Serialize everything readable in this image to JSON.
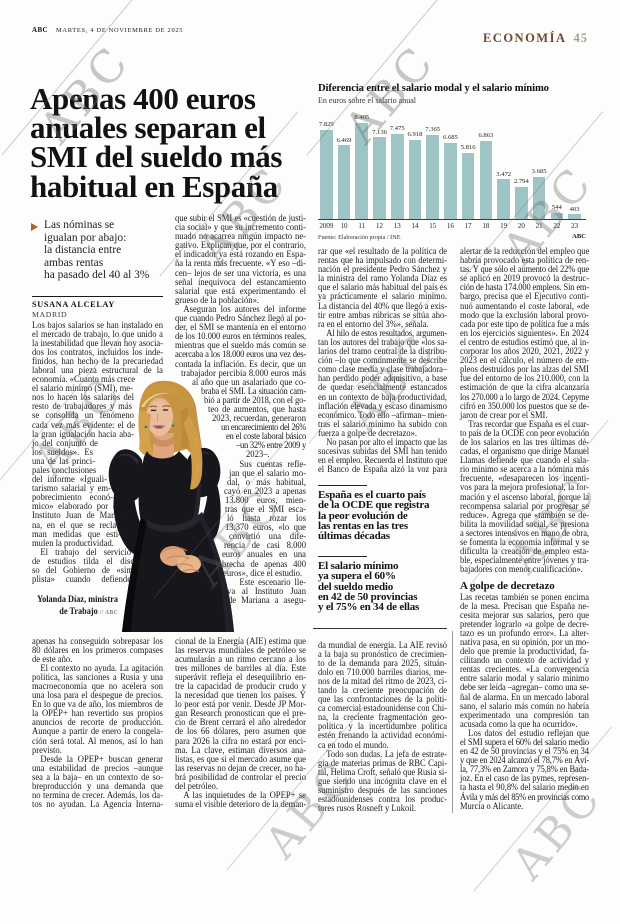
{
  "masthead": {
    "brand": "ABC",
    "date": "MARTES, 4 DE NOVIEMBRE DE 2025",
    "section": "ECONOMÍA",
    "page_number": "45",
    "section_color": "#6d4936",
    "page_number_color": "#9aa58f"
  },
  "headline": {
    "lines": [
      "Apenas 400 euros",
      "anuales separan el",
      "SMI del sueldo más",
      "habitual en España"
    ]
  },
  "standfirst": {
    "lines": [
      "Las nóminas se",
      "igualan por abajo:",
      "la distancia entre",
      "ambas rentas",
      "ha pasado del 40 al 3%"
    ],
    "arrow_color": "#a5672e"
  },
  "byline": {
    "author": "SUSANA ALCELAY",
    "location": "MADRID"
  },
  "chart_data": {
    "type": "bar",
    "title": "Diferencia entre el salario modal y el salario mínimo",
    "subtitle": "En euros sobre el salario anual",
    "categories": [
      "2009",
      "10",
      "11",
      "12",
      "13",
      "14",
      "15",
      "16",
      "17",
      "18",
      "19",
      "20",
      "21",
      "22",
      "23"
    ],
    "values": [
      7829,
      6469,
      8405,
      7136,
      7475,
      6918,
      7365,
      6685,
      5816,
      6863,
      3472,
      2794,
      3685,
      544,
      403
    ],
    "ylim": [
      0,
      8405
    ],
    "grid": false,
    "legend": false,
    "bar_color": "#9fc4c6",
    "xlabel": "",
    "ylabel": "",
    "source": "Fuente: Elaboración propia / INE",
    "credit": "ABC"
  },
  "photo_caption": {
    "name": "Yolanda Díaz, ministra de Trabajo",
    "line1": "Yolanda Díaz, ministra",
    "line2": "de Trabajo",
    "credit": "// ABC"
  },
  "article": {
    "subhead2": "A golpe de decretazo",
    "pull_quotes": [
      {
        "lines": [
          "España es el cuarto país",
          "de la OCDE que registra",
          "la peor evolución de",
          "las rentas en las tres",
          "últimas décadas"
        ]
      },
      {
        "lines": [
          "El salario mínimo",
          "ya supera el 60%",
          "del sueldo medio",
          "en 42 de 50 provincias",
          "y el 75% en 34 de ellas"
        ]
      }
    ],
    "columns": {
      "col1": {
        "inset_side": "right",
        "insets": [
          0,
          0,
          0,
          0,
          0,
          0,
          29,
          33,
          29,
          31,
          29,
          28,
          29,
          65,
          70,
          68,
          77,
          56,
          52,
          50,
          44,
          40,
          44,
          42,
          37,
          32,
          19,
          27,
          32
        ],
        "lines": [
          "Los bajos salarios se han instalado en",
          "el mercado de trabajo, lo que unido a",
          "la inestabilidad que llevan hoy asocia-",
          "dos los contratos, incluidos los inde-",
          "finidos, han hecho de la precariedad",
          "laboral una pieza estructural de la",
          "economía. «Cuanto más crece",
          "el salario mínimo (SMI), me-",
          "nos lo hacen los salarios del",
          "resto de trabajadores y más",
          "se consolida un fenómeno",
          "cada vez más evidente: el de",
          "la gran igualación hacia aba-",
          "jo del conjunto de",
          "los sueldos». Es",
          "una de las princi-",
          "pales conclusiones",
          "del informe «Iguali-",
          "tarismo salarial y em-",
          "pobrecimiento econó-",
          "mico» elaborado por el",
          "Instituto Juan de Maria-",
          "na, en el que se recla-",
          "man medidas que esti-",
          "mulen la productividad.¶",
          "\tEl trabajo del servicio",
          "de estudios tilda el discur-",
          "so del Gobierno de «sim-",
          "plista» cuando defiende"
        ]
      },
      "col2": {
        "inset_side": "left",
        "insets": [
          0,
          0,
          0,
          0,
          0,
          0,
          0,
          0,
          0,
          0,
          0,
          0,
          0,
          0,
          0,
          0,
          0,
          6,
          17,
          26,
          29,
          33,
          37,
          46,
          51,
          61,
          71,
          56,
          54,
          52,
          49,
          50,
          50,
          52,
          50,
          54,
          49,
          47,
          47,
          48,
          56,
          52,
          53
        ],
        "lines": [
          "que subir el SMI es «cuestión de justi-",
          "cia social» y que su incremento conti-",
          "nuado no acarrea ningún impacto ne-",
          "gativo. Explican que, por el contrario,",
          "el indicador ya está rozando en Espa-",
          "ña la renta más frecuente. «Y eso –di-",
          "cen– lejos de ser una victoria, es una",
          "señal inequívoca del estancamiento",
          "salarial que está experimentando el",
          "grueso de la población».¶",
          "\tAseguran los autores del informe",
          "que cuando Pedro Sánchez llegó al po-",
          "der, el SMI se mantenía en el entorno",
          "de los 10.000 euros en términos reales,",
          "mientras que el sueldo más común se",
          "acercaba a los 18.000 euros una vez des-",
          "contada la inflación. Es decir, que un",
          "trabajador percibía 8.000 euros más",
          "al año que un asalariado que co-",
          "braba el SMI. La situación cam-",
          "bió a partir de 2018, con el go-",
          "teo de aumentos, que hasta",
          "2023, recuerdan, generaron",
          "un encarecimiento del 26%",
          "en el coste laboral básico",
          "–un 32% entre 2009 y",
          "2023–.¶",
          "\tSus cuentas refle-",
          "jan que el salario mo-",
          "dal, o más habitual,",
          "cayó en 2023 a apenas",
          "13.800 euros, mien-",
          "tras que el SMI esca-",
          "ló hasta rozar los",
          "13.370 euros, «lo que",
          "convirtió una dife-",
          "rencia de casi 8.000",
          "euros anuales en una",
          "brecha de apenas 400",
          "euros», dice el estudio.¶",
          "\tEste escenario lle-",
          "va al Instituto Juan",
          "de Mariana a asegu-"
        ]
      },
      "col3": {
        "lines": [
          "rar que «el resultado de la política de",
          "rentas que ha impulsado con determi-",
          "nación el presidente Pedro Sánchez y",
          "la ministra del ramo Yolanda Díaz es",
          "que el salario más habitual del país es",
          "ya prácticamente el salario mínimo.",
          "La distancia del 40% que llegó a exis-",
          "tir entre ambas rúbricas se sitúa aho-",
          "ra en el entorno del 3%», señala.¶",
          "\tAl hilo de estos resultados, argumen-",
          "tan los autores del trabajo que «los sa-",
          "larios del tramo central de la distribu-",
          "ción –lo que comúnmente se describe",
          "como clase media y clase trabajadora–",
          "han perdido poder adquisitivo, a base",
          "de quedar esencialmente estancados",
          "en un contexto de baja productividad,",
          "inflación elevada y escaso dinamismo",
          "económico. Todo ello –afirman– mien-",
          "tras el salario mínimo ha subido con",
          "fuerza a golpe de decretazo».¶",
          "\tNo pasan por alto el impacto que las",
          "sucesivas subidas del SMI han tenido",
          "en el empleo. Recuerda el Instituto que",
          "el Banco de España alzó la voz para"
        ]
      },
      "col4a": {
        "lines": [
          "alertar de la reducción del empleo que",
          "habría provocado esta política de ren-",
          "tas. Y que sólo el aumento del 22% que",
          "se aplicó en 2019 provocó la destruc-",
          "ción de hasta 174.000 empleos. Sin em-",
          "bargo, precisa que el Ejecutivo conti-",
          "nuó aumentando el coste laboral, «de",
          "modo que la exclusión laboral provo-",
          "cada por este tipo de política fue a más",
          "en los ejercicios siguientes». En 2024",
          "el centro de estudios estimó que, al in-",
          "corporar los años 2020, 2021, 2022 y",
          "2023 en el cálculo, el número de em-",
          "pleos destruidos por las alzas del SMI",
          "fue del entorno de los 210.000, con la",
          "estimación de que la cifra alcanzaría",
          "los 270.000 a lo largo de 2024. Cepyme",
          "cifró en 350.000 los puestos que se de-",
          "jaron de crear por el SMI.¶",
          "\tTras recordar que España es el cuar-",
          "to país de la OCDE con peor evolución",
          "de los salarios en las tres últimas dé-",
          "cadas, el organismo que dirige Manuel",
          "Llamas defiende que cuando el sala-",
          "rio mínimo se acerca a la nómina más",
          "frecuente, «desaparecen los incenti-",
          "vos para la mejora profesional, la for-",
          "mación y el ascenso laboral, porque la",
          "recompensa salarial por progresar se",
          "reduce». Agrega que «también se de-",
          "bilita la movilidad social, se presiona",
          "a sectores intensivos en mano de obra,",
          "se fomenta la economía informal y se",
          "dificulta la creación de empleo esta-",
          "ble, especialmente entre jóvenes y tra-",
          "bajadores con menor cualificación».¶"
        ]
      },
      "col4b": {
        "lines": [
          "Las recetas también se ponen encima",
          "de la mesa. Precisan que España ne-",
          "cesita mejorar sus salarios, pero que",
          "pretender lograrlo «a golpe de decre-",
          "tazo es un profundo error». La alter-",
          "nativa pasa, en su opinión, por un mo-",
          "delo que premie la productividad, fa-",
          "cilitando un contexto de actividad y",
          "rentas crecientes. «La convergencia",
          "entre salario modal y salario mínimo",
          "debe ser leída –agregan– como una se-",
          "ñal de alarma. En un mercado laboral",
          "sano, el salario más común no habría",
          "experimentado una compresión tan",
          "acusada como la que ha ocurrido».¶",
          "\tLos datos del estudio reflejan que",
          "el SMI supera el 60% del salario medio",
          "en 42 de 50 provincias y el 75% en 34",
          "y que en 2024 alcanzó el 78,7% en Ávi-",
          "la, 77,3% en Zamora y 75,8% en Bada-",
          "joz. En el caso de las pymes, represen-",
          "ta hasta el 90,8% del salario medio en",
          "Ávila y más del 85% en provincias como",
          "Murcia o Alicante.¶"
        ]
      }
    }
  },
  "oil_article": {
    "columns": {
      "o1": {
        "lines": [
          "apenas ha conseguido sobrepasar los",
          "80 dólares en los primeros compases",
          "de este año.¶",
          "\tEl contexto no ayuda. La agitación",
          "política, las sanciones a Rusia y una",
          "macroeconomía que no acelera son",
          "una losa para el despegue de precios.",
          "En lo que va de año, los miembros de",
          "la OPEP+ han revertido sus propios",
          "anuncios de recorte de producción.",
          "Aunque a partir de enero la congela-",
          "ción será total. Al menos, así lo han",
          "previsto.¶",
          "\tDesde la OPEP+ buscan generar",
          "una estabilidad de precios –aunque",
          "sea a la baja– en un contexto de so-",
          "breproducción y una demanda que",
          "no termina de crecer. Además, los da-",
          "tos no ayudan. La Agencia Interna-"
        ]
      },
      "o2": {
        "lines": [
          "cional de la Energía (AIE) estima que",
          "las reservas mundiales de petróleo se",
          "acumularán a un ritmo cercano a los",
          "tres millones de barriles al día. Este",
          "superávit refleja el desequilibrio en-",
          "tre la capacidad de producir crudo y",
          "la necesidad que tienen los países. Y",
          "lo peor está por venir. Desde JP Mor-",
          "gan Research pronostican que el pre-",
          "cio de Brent cerrará el año alrededor",
          "de los 66 dólares, pero asumen que",
          "para 2026 la cifra no estará por enci-",
          "ma. La clave, estiman diversos ana-",
          "listas, es que si el mercado asume que",
          "las reservas no dejan de crecer, no ha-",
          "brá posibilidad de controlar el precio",
          "del petróleo.¶",
          "\tA las inquietudes de la OPEP+ se",
          "suma el visible deterioro de la deman-"
        ]
      },
      "o3": {
        "lines": [
          "da mundial de energía. La AIE revisó",
          "a la baja su pronóstico de crecimien-",
          "to de la demanda para 2025, situán-",
          "dolo en 710.000 barriles diarios, me-",
          "nos de la mitad del ritmo de 2023, ci-",
          "tando la creciente preocupación de",
          "que las confrontaciones de la políti-",
          "ca comercial estadounidense con Chi-",
          "na, la creciente fragmentación geo-",
          "política y la incertidumbre política",
          "estén frenando la actividad económi-",
          "ca en todo el mundo.¶",
          "\tTodo son dudas. La jefa de estrate-",
          "gia de materias primas de RBC Capi-",
          "tal, Helima Croft, señaló que Rusia si-",
          "gue siendo una incógnita clave en el",
          "suministro después de las sanciones",
          "estadounidenses contra los produc-",
          "tores rusos Rosneft y Lukoil.¶"
        ]
      }
    }
  },
  "watermark": {
    "text": "ABC"
  }
}
